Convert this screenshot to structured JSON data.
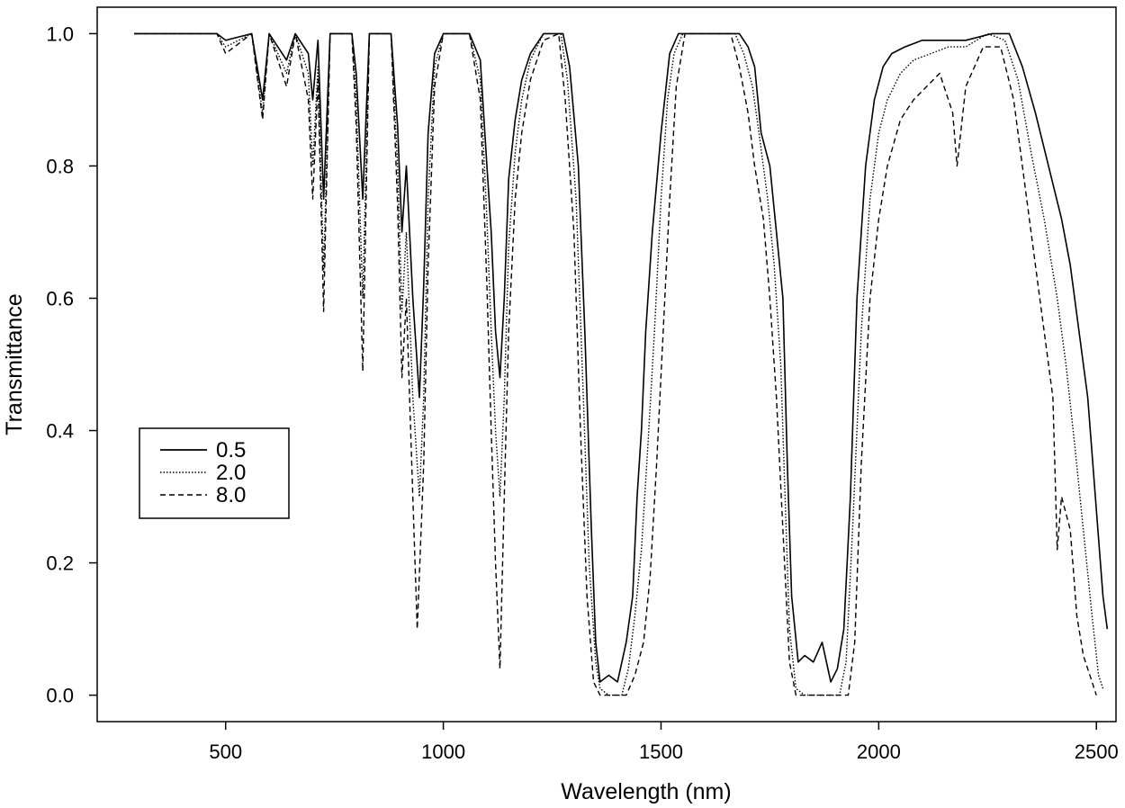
{
  "chart_data": {
    "type": "line",
    "title": "",
    "xlabel": "Wavelength (nm)",
    "ylabel": "Transmittance",
    "xlim": [
      205,
      2545
    ],
    "ylim": [
      -0.04,
      1.04
    ],
    "x_ticks": [
      500,
      1000,
      1500,
      2000,
      2500
    ],
    "x_tick_labels": [
      "500",
      "1000",
      "1500",
      "2000",
      "2500"
    ],
    "y_ticks": [
      0.0,
      0.2,
      0.4,
      0.6,
      0.8,
      1.0
    ],
    "y_tick_labels": [
      "0.0",
      "0.2",
      "0.4",
      "0.6",
      "0.8",
      "1.0"
    ],
    "grid": false,
    "legend_position": "left-middle",
    "series": [
      {
        "name": "0.5",
        "dash": "solid",
        "points": [
          [
            290,
            1.0
          ],
          [
            480,
            1.0
          ],
          [
            500,
            0.99
          ],
          [
            560,
            1.0
          ],
          [
            585,
            0.9
          ],
          [
            600,
            1.0
          ],
          [
            640,
            0.96
          ],
          [
            660,
            1.0
          ],
          [
            690,
            0.97
          ],
          [
            700,
            0.9
          ],
          [
            712,
            0.99
          ],
          [
            725,
            0.75
          ],
          [
            740,
            1.0
          ],
          [
            790,
            1.0
          ],
          [
            800,
            0.94
          ],
          [
            815,
            0.75
          ],
          [
            830,
            1.0
          ],
          [
            880,
            1.0
          ],
          [
            895,
            0.86
          ],
          [
            905,
            0.7
          ],
          [
            915,
            0.8
          ],
          [
            930,
            0.6
          ],
          [
            945,
            0.45
          ],
          [
            955,
            0.62
          ],
          [
            965,
            0.85
          ],
          [
            980,
            0.97
          ],
          [
            1000,
            1.0
          ],
          [
            1060,
            1.0
          ],
          [
            1085,
            0.96
          ],
          [
            1100,
            0.8
          ],
          [
            1110,
            0.7
          ],
          [
            1120,
            0.55
          ],
          [
            1130,
            0.48
          ],
          [
            1140,
            0.6
          ],
          [
            1150,
            0.78
          ],
          [
            1165,
            0.87
          ],
          [
            1180,
            0.93
          ],
          [
            1200,
            0.97
          ],
          [
            1230,
            1.0
          ],
          [
            1275,
            1.0
          ],
          [
            1290,
            0.95
          ],
          [
            1310,
            0.8
          ],
          [
            1325,
            0.55
          ],
          [
            1340,
            0.25
          ],
          [
            1350,
            0.08
          ],
          [
            1360,
            0.02
          ],
          [
            1380,
            0.03
          ],
          [
            1400,
            0.02
          ],
          [
            1420,
            0.08
          ],
          [
            1435,
            0.15
          ],
          [
            1445,
            0.3
          ],
          [
            1455,
            0.4
          ],
          [
            1465,
            0.55
          ],
          [
            1480,
            0.7
          ],
          [
            1500,
            0.85
          ],
          [
            1520,
            0.97
          ],
          [
            1540,
            1.0
          ],
          [
            1680,
            1.0
          ],
          [
            1700,
            0.98
          ],
          [
            1715,
            0.95
          ],
          [
            1730,
            0.85
          ],
          [
            1750,
            0.8
          ],
          [
            1765,
            0.7
          ],
          [
            1780,
            0.6
          ],
          [
            1790,
            0.35
          ],
          [
            1800,
            0.15
          ],
          [
            1815,
            0.05
          ],
          [
            1830,
            0.06
          ],
          [
            1850,
            0.05
          ],
          [
            1870,
            0.08
          ],
          [
            1890,
            0.02
          ],
          [
            1905,
            0.04
          ],
          [
            1920,
            0.1
          ],
          [
            1935,
            0.3
          ],
          [
            1950,
            0.6
          ],
          [
            1970,
            0.8
          ],
          [
            1990,
            0.9
          ],
          [
            2010,
            0.95
          ],
          [
            2030,
            0.97
          ],
          [
            2060,
            0.98
          ],
          [
            2100,
            0.99
          ],
          [
            2150,
            0.99
          ],
          [
            2200,
            0.99
          ],
          [
            2260,
            1.0
          ],
          [
            2300,
            1.0
          ],
          [
            2330,
            0.95
          ],
          [
            2360,
            0.88
          ],
          [
            2390,
            0.8
          ],
          [
            2420,
            0.72
          ],
          [
            2440,
            0.65
          ],
          [
            2460,
            0.55
          ],
          [
            2480,
            0.45
          ],
          [
            2500,
            0.28
          ],
          [
            2515,
            0.15
          ],
          [
            2525,
            0.1
          ]
        ]
      },
      {
        "name": "2.0",
        "dash": "dotted",
        "points": [
          [
            290,
            1.0
          ],
          [
            480,
            1.0
          ],
          [
            500,
            0.98
          ],
          [
            560,
            1.0
          ],
          [
            585,
            0.88
          ],
          [
            600,
            1.0
          ],
          [
            640,
            0.94
          ],
          [
            660,
            1.0
          ],
          [
            690,
            0.94
          ],
          [
            700,
            0.8
          ],
          [
            712,
            0.95
          ],
          [
            725,
            0.64
          ],
          [
            740,
            1.0
          ],
          [
            790,
            1.0
          ],
          [
            800,
            0.9
          ],
          [
            815,
            0.6
          ],
          [
            830,
            1.0
          ],
          [
            880,
            1.0
          ],
          [
            895,
            0.8
          ],
          [
            905,
            0.58
          ],
          [
            915,
            0.7
          ],
          [
            930,
            0.45
          ],
          [
            945,
            0.3
          ],
          [
            955,
            0.45
          ],
          [
            965,
            0.75
          ],
          [
            980,
            0.95
          ],
          [
            1000,
            1.0
          ],
          [
            1060,
            1.0
          ],
          [
            1085,
            0.93
          ],
          [
            1100,
            0.72
          ],
          [
            1110,
            0.55
          ],
          [
            1120,
            0.4
          ],
          [
            1130,
            0.3
          ],
          [
            1140,
            0.45
          ],
          [
            1150,
            0.68
          ],
          [
            1165,
            0.82
          ],
          [
            1180,
            0.9
          ],
          [
            1200,
            0.96
          ],
          [
            1230,
            1.0
          ],
          [
            1270,
            1.0
          ],
          [
            1285,
            0.93
          ],
          [
            1305,
            0.75
          ],
          [
            1320,
            0.48
          ],
          [
            1335,
            0.2
          ],
          [
            1350,
            0.05
          ],
          [
            1360,
            0.01
          ],
          [
            1380,
            0.0
          ],
          [
            1410,
            0.0
          ],
          [
            1425,
            0.04
          ],
          [
            1440,
            0.12
          ],
          [
            1455,
            0.22
          ],
          [
            1470,
            0.38
          ],
          [
            1485,
            0.55
          ],
          [
            1500,
            0.75
          ],
          [
            1515,
            0.9
          ],
          [
            1530,
            0.97
          ],
          [
            1550,
            1.0
          ],
          [
            1670,
            1.0
          ],
          [
            1690,
            0.97
          ],
          [
            1710,
            0.92
          ],
          [
            1725,
            0.85
          ],
          [
            1745,
            0.75
          ],
          [
            1760,
            0.65
          ],
          [
            1775,
            0.5
          ],
          [
            1785,
            0.3
          ],
          [
            1795,
            0.1
          ],
          [
            1810,
            0.01
          ],
          [
            1830,
            0.0
          ],
          [
            1880,
            0.0
          ],
          [
            1910,
            0.0
          ],
          [
            1925,
            0.05
          ],
          [
            1940,
            0.25
          ],
          [
            1960,
            0.55
          ],
          [
            1980,
            0.75
          ],
          [
            2000,
            0.85
          ],
          [
            2020,
            0.9
          ],
          [
            2050,
            0.94
          ],
          [
            2080,
            0.96
          ],
          [
            2120,
            0.97
          ],
          [
            2160,
            0.98
          ],
          [
            2200,
            0.98
          ],
          [
            2250,
            1.0
          ],
          [
            2290,
            0.99
          ],
          [
            2320,
            0.93
          ],
          [
            2350,
            0.82
          ],
          [
            2380,
            0.72
          ],
          [
            2410,
            0.6
          ],
          [
            2430,
            0.5
          ],
          [
            2450,
            0.38
          ],
          [
            2470,
            0.25
          ],
          [
            2490,
            0.12
          ],
          [
            2505,
            0.03
          ],
          [
            2515,
            0.01
          ]
        ]
      },
      {
        "name": "8.0",
        "dash": "dashed",
        "points": [
          [
            290,
            1.0
          ],
          [
            480,
            1.0
          ],
          [
            500,
            0.97
          ],
          [
            560,
            1.0
          ],
          [
            585,
            0.87
          ],
          [
            600,
            1.0
          ],
          [
            640,
            0.92
          ],
          [
            660,
            1.0
          ],
          [
            690,
            0.9
          ],
          [
            700,
            0.75
          ],
          [
            712,
            0.93
          ],
          [
            725,
            0.58
          ],
          [
            740,
            1.0
          ],
          [
            790,
            1.0
          ],
          [
            800,
            0.86
          ],
          [
            815,
            0.49
          ],
          [
            830,
            1.0
          ],
          [
            880,
            1.0
          ],
          [
            895,
            0.74
          ],
          [
            905,
            0.48
          ],
          [
            915,
            0.6
          ],
          [
            930,
            0.3
          ],
          [
            940,
            0.1
          ],
          [
            955,
            0.35
          ],
          [
            965,
            0.65
          ],
          [
            980,
            0.92
          ],
          [
            1000,
            1.0
          ],
          [
            1060,
            1.0
          ],
          [
            1085,
            0.9
          ],
          [
            1100,
            0.62
          ],
          [
            1110,
            0.4
          ],
          [
            1120,
            0.2
          ],
          [
            1130,
            0.04
          ],
          [
            1140,
            0.3
          ],
          [
            1150,
            0.55
          ],
          [
            1165,
            0.75
          ],
          [
            1180,
            0.85
          ],
          [
            1200,
            0.93
          ],
          [
            1230,
            0.99
          ],
          [
            1265,
            1.0
          ],
          [
            1280,
            0.9
          ],
          [
            1300,
            0.7
          ],
          [
            1315,
            0.4
          ],
          [
            1330,
            0.15
          ],
          [
            1345,
            0.02
          ],
          [
            1360,
            0.0
          ],
          [
            1420,
            0.0
          ],
          [
            1440,
            0.03
          ],
          [
            1460,
            0.08
          ],
          [
            1475,
            0.18
          ],
          [
            1490,
            0.35
          ],
          [
            1505,
            0.55
          ],
          [
            1520,
            0.75
          ],
          [
            1535,
            0.92
          ],
          [
            1555,
            1.0
          ],
          [
            1660,
            1.0
          ],
          [
            1680,
            0.95
          ],
          [
            1700,
            0.88
          ],
          [
            1715,
            0.8
          ],
          [
            1735,
            0.72
          ],
          [
            1750,
            0.6
          ],
          [
            1765,
            0.45
          ],
          [
            1780,
            0.25
          ],
          [
            1795,
            0.05
          ],
          [
            1810,
            0.0
          ],
          [
            1900,
            0.0
          ],
          [
            1930,
            0.0
          ],
          [
            1945,
            0.08
          ],
          [
            1960,
            0.35
          ],
          [
            1980,
            0.6
          ],
          [
            2000,
            0.72
          ],
          [
            2020,
            0.8
          ],
          [
            2050,
            0.87
          ],
          [
            2080,
            0.9
          ],
          [
            2110,
            0.92
          ],
          [
            2140,
            0.94
          ],
          [
            2170,
            0.88
          ],
          [
            2180,
            0.8
          ],
          [
            2200,
            0.92
          ],
          [
            2240,
            0.98
          ],
          [
            2280,
            0.98
          ],
          [
            2310,
            0.9
          ],
          [
            2340,
            0.75
          ],
          [
            2370,
            0.6
          ],
          [
            2400,
            0.45
          ],
          [
            2410,
            0.22
          ],
          [
            2420,
            0.3
          ],
          [
            2440,
            0.25
          ],
          [
            2455,
            0.12
          ],
          [
            2470,
            0.06
          ],
          [
            2490,
            0.02
          ],
          [
            2500,
            0.0
          ]
        ]
      }
    ],
    "legend": {
      "entries": [
        "0.5",
        "2.0",
        "8.0"
      ]
    }
  }
}
